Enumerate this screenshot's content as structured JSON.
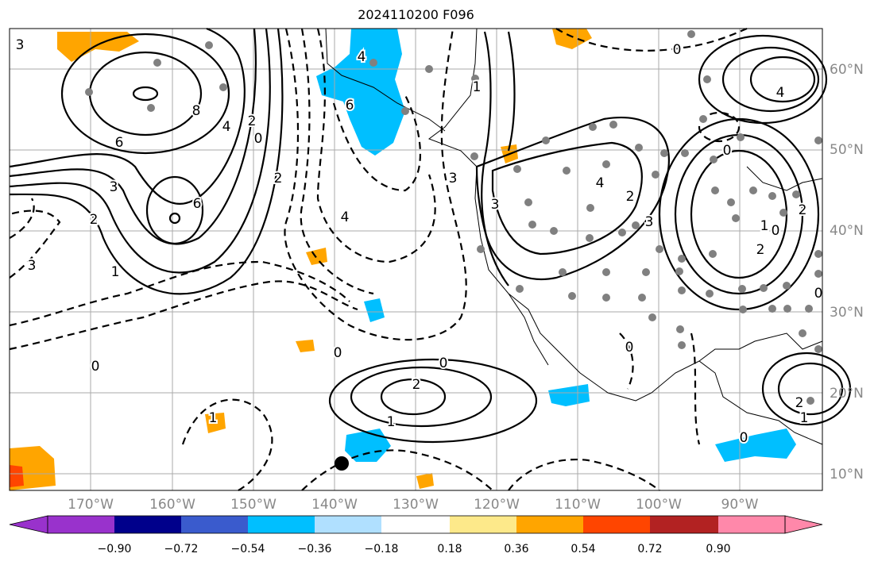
{
  "title": "2024110200 F096",
  "lon_labels": [
    "170°W",
    "160°W",
    "150°W",
    "140°W",
    "130°W",
    "120°W",
    "110°W",
    "100°W",
    "90°W"
  ],
  "lat_labels": [
    "60°N",
    "50°N",
    "40°N",
    "30°N",
    "20°N",
    "10°N"
  ],
  "colorbar": {
    "ticks": [
      "−0.90",
      "−0.72",
      "−0.54",
      "−0.36",
      "−0.18",
      "0.18",
      "0.36",
      "0.54",
      "0.72",
      "0.90"
    ],
    "colors": [
      "#9932cc",
      "#00008b",
      "#3a5bcd",
      "#00bfff",
      "#b0e0ff",
      "#ffffff",
      "#fde98a",
      "#ffa500",
      "#ff4500",
      "#b22222",
      "#ff88aa"
    ]
  },
  "contour_labels": [
    "0",
    "3",
    "2",
    "1",
    "8",
    "6",
    "4",
    "6",
    "2",
    "3",
    "0",
    "0",
    "2",
    "1",
    "6",
    "4",
    "3",
    "2",
    "1",
    "0",
    "4",
    "3",
    "2",
    "3",
    "0",
    "4",
    "2",
    "1",
    "0",
    "2",
    "0",
    "0",
    "2",
    "1",
    "1",
    "4",
    "3",
    "0",
    "0"
  ],
  "colors": {
    "ocean_positive": "#ffa500",
    "ocean_negative": "#00bfff",
    "station": "#808080"
  }
}
